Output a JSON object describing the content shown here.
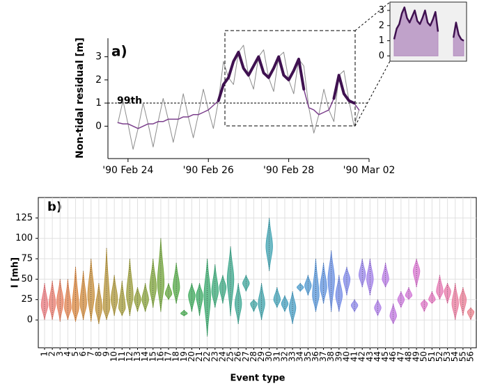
{
  "chart_data": [
    {
      "type": "line",
      "panel_label": "a)",
      "ylabel": "Non-tidal residual [m]",
      "xlim": [
        "1990-02-23 12:00",
        "1990-03-02 00:00"
      ],
      "xticks": [
        {
          "value": "1990-02-24 00:00",
          "label": "'90 Feb 24"
        },
        {
          "value": "1990-02-26 00:00",
          "label": "'90 Feb 26"
        },
        {
          "value": "1990-02-28 00:00",
          "label": "'90 Feb 28"
        },
        {
          "value": "1990-03-02 00:00",
          "label": "'90 Mar 02"
        }
      ],
      "ylim": [
        -1.4,
        3.8
      ],
      "yticks": [
        0,
        1,
        2,
        3
      ],
      "threshold": {
        "value": 1,
        "label": "99th"
      },
      "x": [
        "1990-02-23 18:00",
        "1990-02-23 21:00",
        "1990-02-24 00:00",
        "1990-02-24 03:00",
        "1990-02-24 06:00",
        "1990-02-24 09:00",
        "1990-02-24 12:00",
        "1990-02-24 15:00",
        "1990-02-24 18:00",
        "1990-02-24 21:00",
        "1990-02-25 00:00",
        "1990-02-25 03:00",
        "1990-02-25 06:00",
        "1990-02-25 09:00",
        "1990-02-25 12:00",
        "1990-02-25 15:00",
        "1990-02-25 18:00",
        "1990-02-25 21:00",
        "1990-02-26 00:00",
        "1990-02-26 03:00",
        "1990-02-26 06:00",
        "1990-02-26 09:00",
        "1990-02-26 12:00",
        "1990-02-26 15:00",
        "1990-02-26 18:00",
        "1990-02-26 21:00",
        "1990-02-27 00:00",
        "1990-02-27 03:00",
        "1990-02-27 06:00",
        "1990-02-27 09:00",
        "1990-02-27 12:00",
        "1990-02-27 15:00",
        "1990-02-27 18:00",
        "1990-02-27 21:00",
        "1990-02-28 00:00",
        "1990-02-28 03:00",
        "1990-02-28 06:00",
        "1990-02-28 09:00",
        "1990-02-28 12:00",
        "1990-02-28 15:00",
        "1990-02-28 18:00",
        "1990-02-28 21:00",
        "1990-03-01 00:00",
        "1990-03-01 03:00",
        "1990-03-01 06:00",
        "1990-03-01 09:00",
        "1990-03-01 12:00",
        "1990-03-01 15:00",
        "1990-03-01 18:00"
      ],
      "series": [
        {
          "color": "#8c8c8c",
          "linewidth": 1,
          "values": [
            0.15,
            1.1,
            0.1,
            -1.0,
            -0.1,
            1.0,
            0.1,
            -0.9,
            0.2,
            1.2,
            0.3,
            -0.7,
            0.3,
            1.4,
            0.4,
            -0.5,
            0.5,
            1.6,
            0.7,
            -0.1,
            1.1,
            2.8,
            2.1,
            1.8,
            3.2,
            3.5,
            2.2,
            1.6,
            3.0,
            3.3,
            2.1,
            1.5,
            3.0,
            3.2,
            2.0,
            1.4,
            2.9,
            2.6,
            0.8,
            -0.3,
            0.5,
            1.6,
            0.7,
            0.2,
            2.2,
            2.4,
            1.1,
            0.0,
            0.7
          ]
        },
        {
          "color": "#7b3f8c",
          "linewidth": 1.5,
          "values": [
            0.15,
            0.1,
            0.1,
            0.0,
            -0.1,
            0.0,
            0.1,
            0.1,
            0.2,
            0.2,
            0.3,
            0.3,
            0.3,
            0.4,
            0.4,
            0.5,
            0.5,
            0.6,
            0.7,
            0.9,
            1.1,
            1.8,
            2.1,
            2.8,
            3.2,
            2.5,
            2.2,
            2.6,
            3.0,
            2.3,
            2.1,
            2.5,
            3.0,
            2.2,
            2.0,
            2.4,
            2.9,
            1.6,
            0.8,
            0.7,
            0.5,
            0.6,
            0.7,
            1.2,
            2.2,
            1.4,
            1.1,
            1.0,
            0.7
          ]
        },
        {
          "color": "#3f1150",
          "linewidth": 4,
          "values": [
            null,
            null,
            null,
            null,
            null,
            null,
            null,
            null,
            null,
            null,
            null,
            null,
            null,
            null,
            null,
            null,
            null,
            null,
            null,
            null,
            1.1,
            1.8,
            2.1,
            2.8,
            3.2,
            2.5,
            2.2,
            2.6,
            3.0,
            2.3,
            2.1,
            2.5,
            3.0,
            2.2,
            2.0,
            2.4,
            2.9,
            1.6,
            null,
            null,
            null,
            null,
            null,
            1.2,
            2.2,
            1.4,
            1.1,
            1.0,
            null
          ]
        }
      ],
      "inset": {
        "xlim": [
          "1990-02-26 06:00",
          "1990-03-01 15:00"
        ],
        "ylim": [
          -0.35,
          3.55
        ],
        "yticks": [
          0,
          1,
          2,
          3
        ],
        "fill": "#b48ec0"
      }
    },
    {
      "type": "violin",
      "panel_label": "b)",
      "ylabel": "I [mh]",
      "xlabel": "Event type",
      "ylim": [
        -34,
        150
      ],
      "yticks": [
        0,
        25,
        50,
        75,
        100,
        125
      ],
      "grid": true,
      "categories": [
        "1",
        "2",
        "3",
        "4",
        "5",
        "6",
        "7",
        "8",
        "9",
        "10",
        "11",
        "12",
        "13",
        "14",
        "15",
        "16",
        "17",
        "18",
        "19",
        "20",
        "21",
        "22",
        "23",
        "24",
        "25",
        "26",
        "27",
        "28",
        "29",
        "30",
        "31",
        "32",
        "33",
        "34",
        "35",
        "36",
        "37",
        "38",
        "39",
        "40",
        "41",
        "42",
        "43",
        "44",
        "45",
        "46",
        "47",
        "48",
        "49",
        "50",
        "51",
        "52",
        "53",
        "54",
        "55",
        "56"
      ],
      "colors": [
        "#e8777c",
        "#e87a6c",
        "#e67c5c",
        "#e0804c",
        "#d8843c",
        "#cf883a",
        "#c68c38",
        "#bd9038",
        "#b49338",
        "#ab9638",
        "#a29938",
        "#999b38",
        "#909d38",
        "#869f38",
        "#7ca138",
        "#70a338",
        "#62a53c",
        "#52a744",
        "#44a84e",
        "#3aa858",
        "#38a862",
        "#38a86c",
        "#38a876",
        "#38a780",
        "#39a68a",
        "#3aa592",
        "#3ba49a",
        "#3ca3a2",
        "#3da2a9",
        "#3ea1b0",
        "#40a0b6",
        "#429ebd",
        "#459cc3",
        "#499aca",
        "#4e97d0",
        "#5594d7",
        "#5d91dd",
        "#678ee2",
        "#728ae6",
        "#7e87e8",
        "#8a84e8",
        "#9581e8",
        "#a07ee8",
        "#ab7be6",
        "#b578e3",
        "#bf76df",
        "#c874da",
        "#d073d4",
        "#d772cd",
        "#dd72c5",
        "#e273bc",
        "#e675b2",
        "#e877a8",
        "#e9799e",
        "#e97b94",
        "#e97d8a"
      ],
      "min": [
        0,
        0,
        -2,
        0,
        -2,
        0,
        -2,
        -5,
        0,
        5,
        5,
        5,
        10,
        10,
        15,
        10,
        25,
        20,
        5,
        10,
        5,
        -20,
        15,
        20,
        5,
        -5,
        35,
        10,
        0,
        60,
        15,
        10,
        -5,
        35,
        30,
        10,
        20,
        10,
        10,
        30,
        10,
        40,
        30,
        5,
        40,
        -5,
        15,
        25,
        40,
        10,
        20,
        25,
        20,
        0,
        5,
        0
      ],
      "mode": [
        18,
        20,
        22,
        15,
        15,
        20,
        30,
        15,
        15,
        25,
        15,
        30,
        25,
        25,
        40,
        45,
        32,
        40,
        8,
        30,
        30,
        30,
        35,
        40,
        50,
        20,
        45,
        20,
        20,
        90,
        25,
        20,
        15,
        40,
        42,
        30,
        40,
        50,
        30,
        50,
        18,
        55,
        50,
        15,
        50,
        5,
        25,
        30,
        60,
        20,
        25,
        35,
        35,
        20,
        25,
        10
      ],
      "max": [
        45,
        48,
        50,
        50,
        65,
        60,
        75,
        45,
        88,
        55,
        48,
        75,
        40,
        45,
        75,
        100,
        45,
        70,
        12,
        45,
        45,
        75,
        68,
        55,
        90,
        45,
        55,
        25,
        45,
        125,
        40,
        30,
        35,
        45,
        55,
        75,
        70,
        85,
        55,
        65,
        25,
        75,
        75,
        25,
        70,
        20,
        35,
        40,
        75,
        25,
        35,
        55,
        45,
        45,
        40,
        15
      ]
    }
  ]
}
